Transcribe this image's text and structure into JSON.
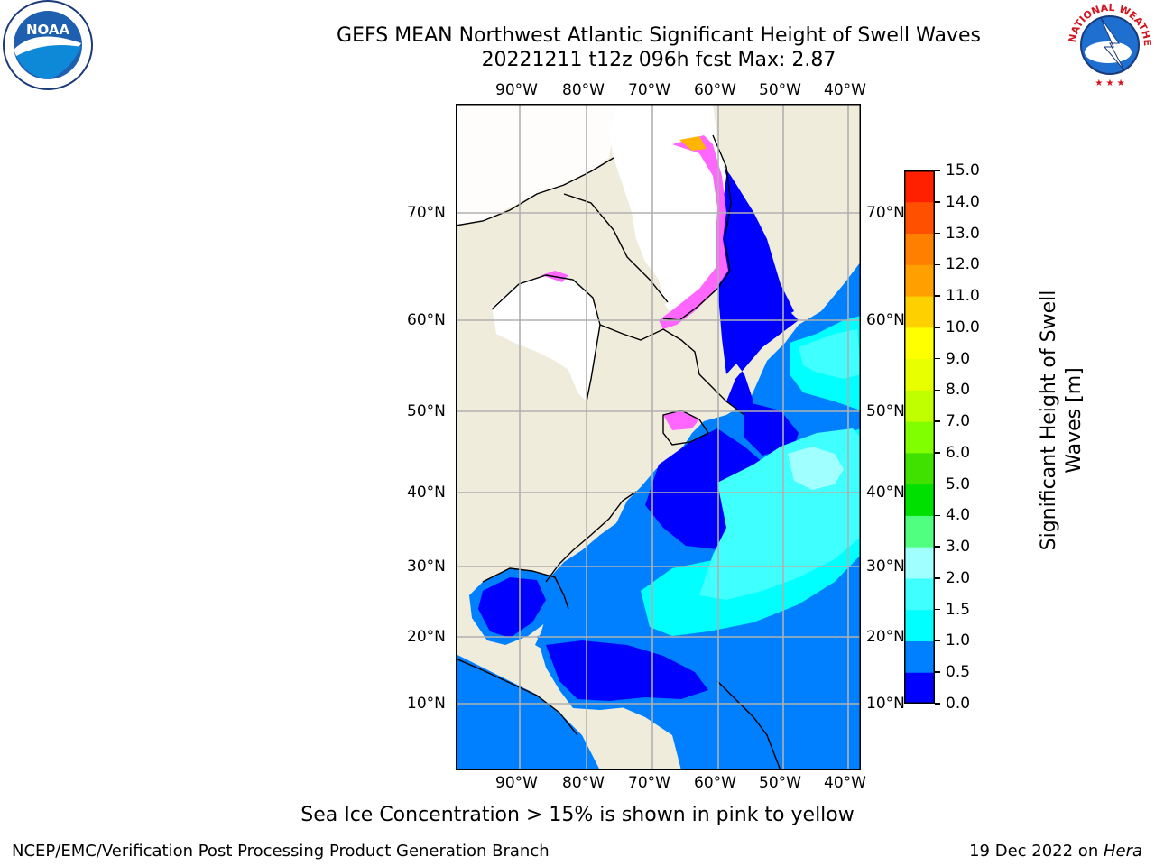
{
  "header": {
    "title_line1": "GEFS MEAN Northwest Atlantic Significant Height of Swell Waves",
    "title_line2": "20221211 t12z 096h fcst   Max: 2.87"
  },
  "logos": {
    "left": {
      "name": "noaa-logo",
      "text": "NOAA"
    },
    "right": {
      "name": "nws-logo",
      "text": "NATIONAL WEATHER SERVICE"
    }
  },
  "map": {
    "lon_labels": [
      "90°W",
      "80°W",
      "70°W",
      "60°W",
      "50°W",
      "40°W"
    ],
    "lat_labels": [
      "70°N",
      "60°N",
      "50°N",
      "40°N",
      "30°N",
      "20°N",
      "10°N"
    ],
    "colors": {
      "land": "#efecdc",
      "ice_white": "#ffffff",
      "grid": "#b0b0b0",
      "coast": "#000000",
      "ice_pink": "#ff66ff",
      "ice_orange": "#ffb400"
    }
  },
  "colorbar": {
    "label": "Significant Height of Swell Waves [m]",
    "ticks": [
      "0.0",
      "0.5",
      "1.0",
      "1.5",
      "2.0",
      "3.0",
      "4.0",
      "5.0",
      "6.0",
      "7.0",
      "8.0",
      "9.0",
      "10.0",
      "11.0",
      "12.0",
      "13.0",
      "14.0",
      "15.0"
    ],
    "colors": [
      "#0000ff",
      "#0080ff",
      "#00ffff",
      "#40ffff",
      "#a0ffff",
      "#50ff80",
      "#00e000",
      "#40e000",
      "#80ff00",
      "#c0ff00",
      "#e8ff00",
      "#ffff00",
      "#ffd000",
      "#ffa000",
      "#ff8000",
      "#ff5000",
      "#ff2000",
      "#ff0000"
    ]
  },
  "note": "Sea Ice Concentration > 15% is shown in pink to yellow",
  "footer": {
    "left": "NCEP/EMC/Verification Post Processing Product Generation Branch",
    "right_date": "19 Dec 2022 on ",
    "right_machine": "Hera"
  }
}
